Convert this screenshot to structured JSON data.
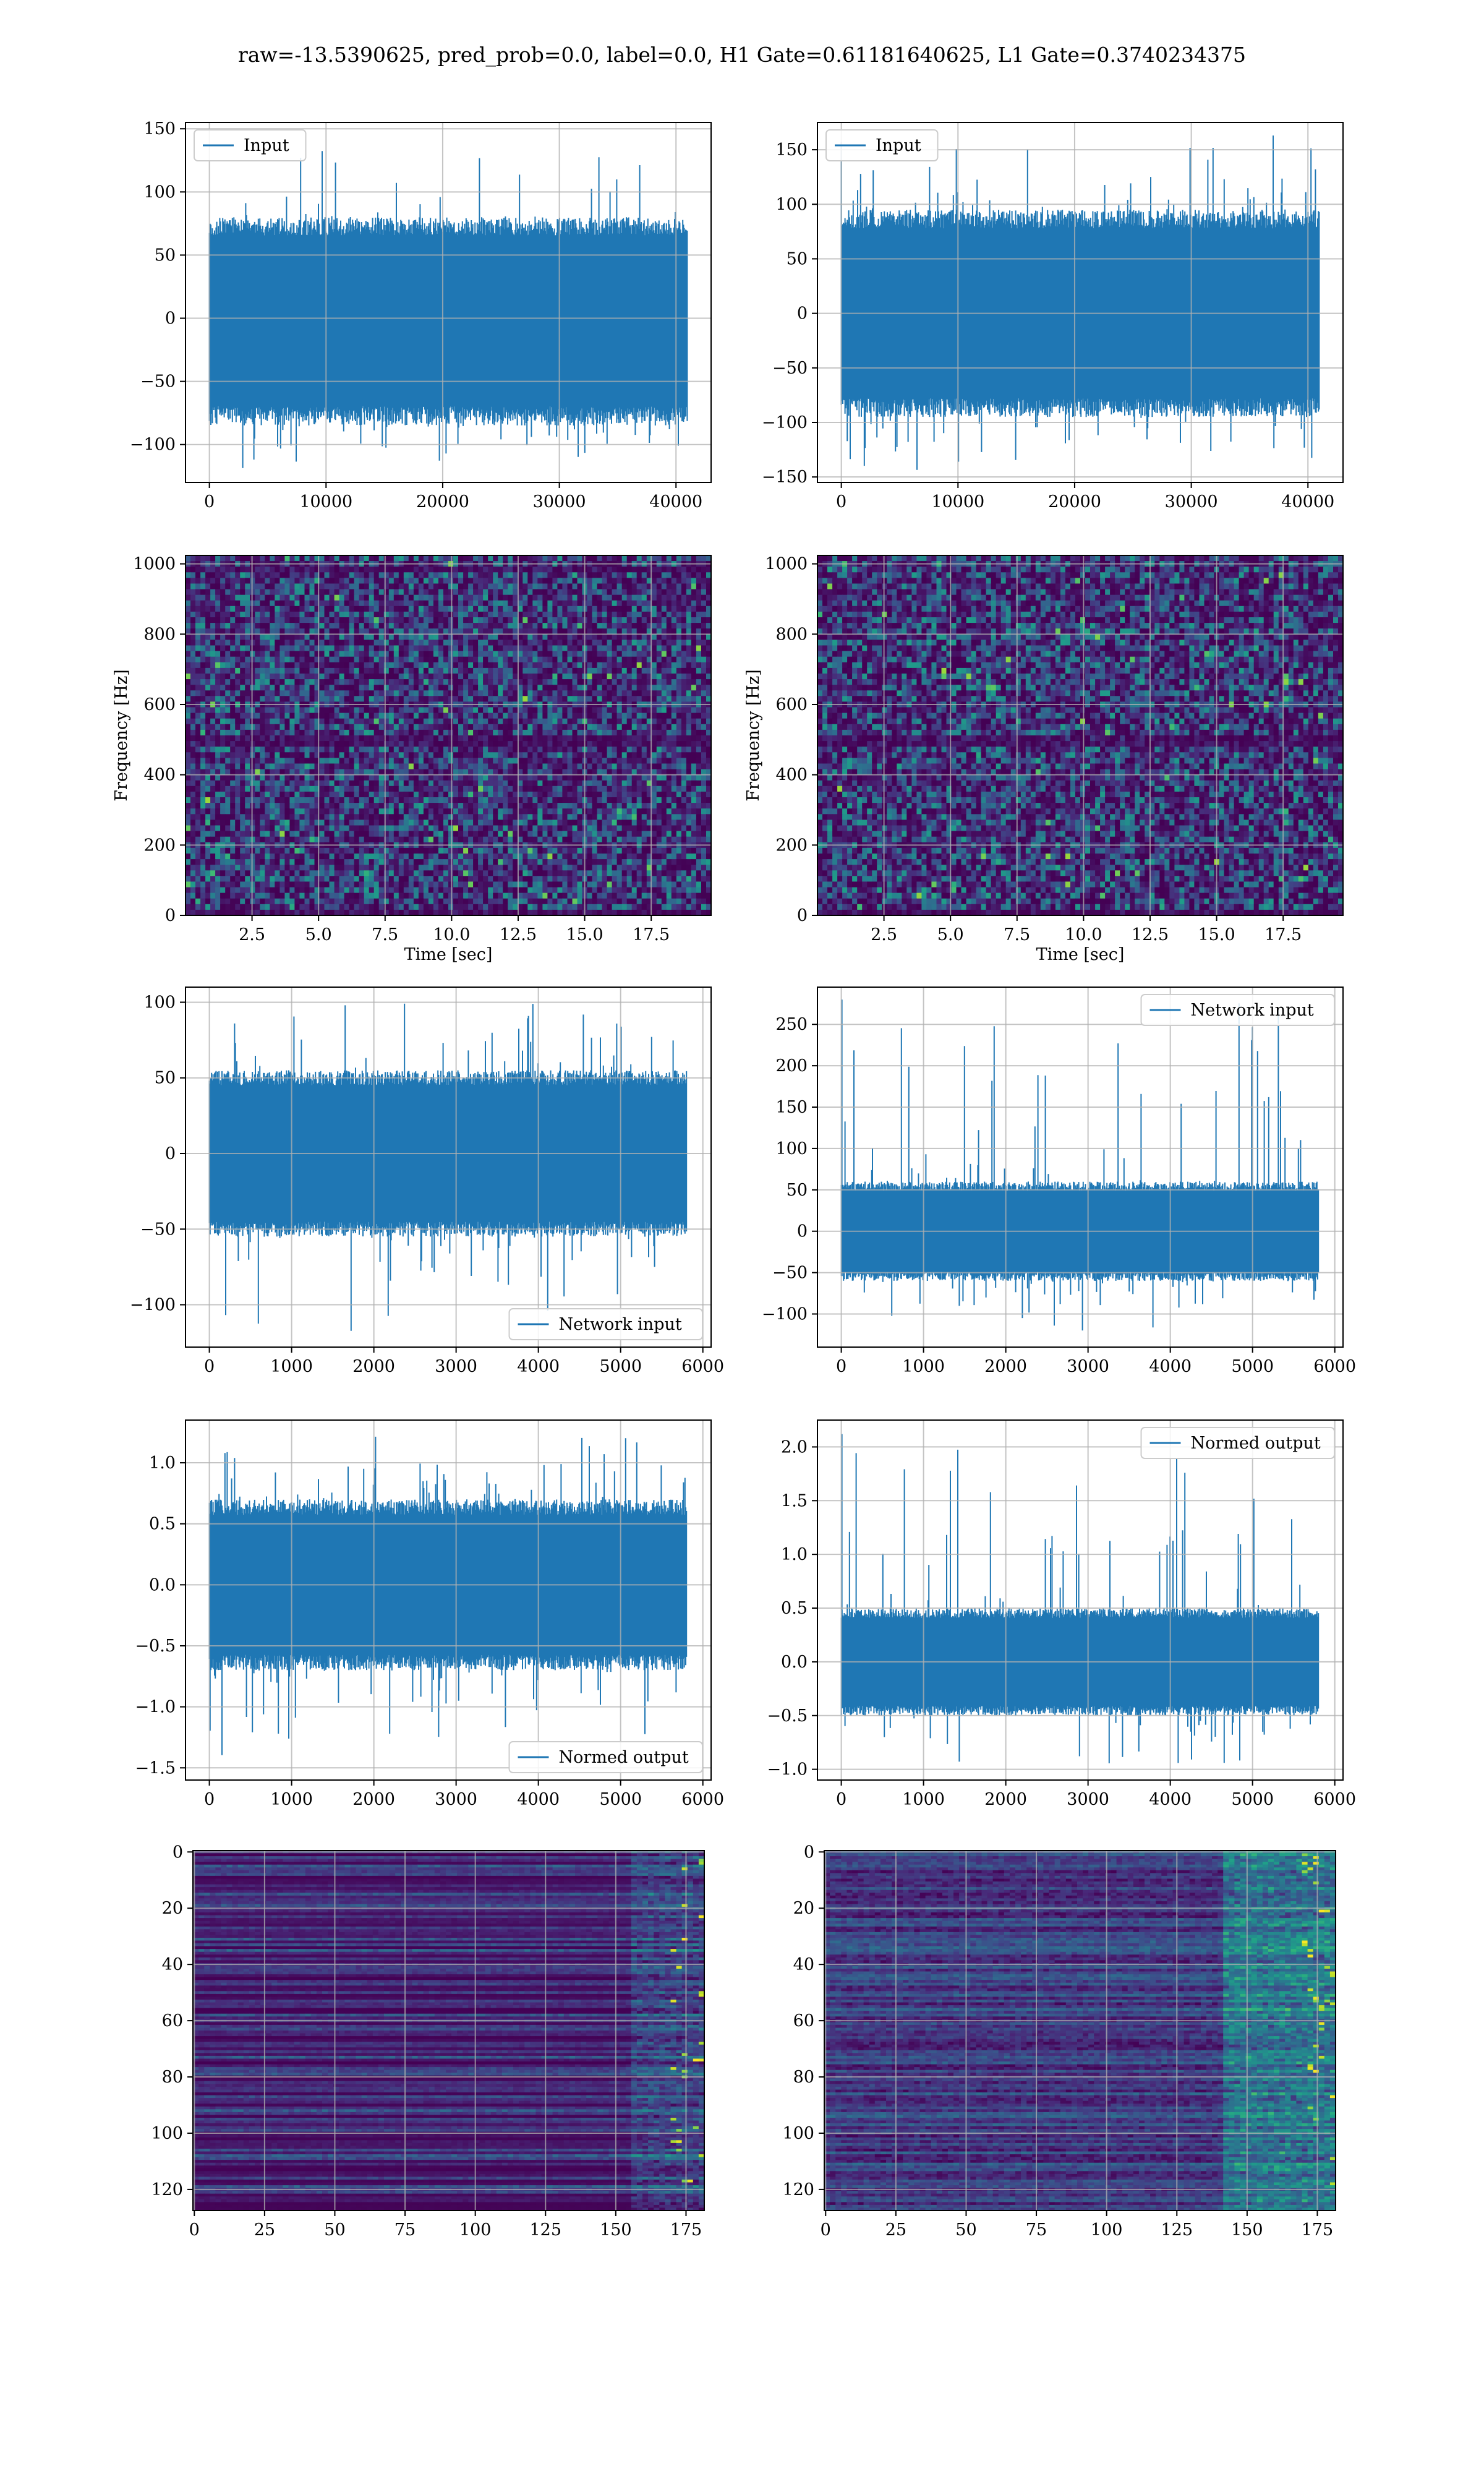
{
  "figure": {
    "suptitle": "raw=-13.5390625, pred_prob=0.0, label=0.0, H1 Gate=0.61181640625, L1 Gate=0.3740234375"
  },
  "colors": {
    "line": "#1f77b4",
    "grid": "#b0b0b0",
    "viridis_low": "#440154",
    "viridis_mid": "#21918c",
    "viridis_high": "#fde725"
  },
  "chart_data": [
    {
      "id": "h1-input",
      "type": "line",
      "xlim": [
        -2048,
        43008
      ],
      "ylim": [
        -130,
        155
      ],
      "xticks": [
        0,
        10000,
        20000,
        30000,
        40000
      ],
      "yticks": [
        -100,
        -50,
        0,
        50,
        100,
        150
      ],
      "xlabel": "",
      "ylabel": "",
      "legend": {
        "label": "Input",
        "position": "upper-left"
      },
      "series": [
        {
          "name": "Input",
          "n_samples": 40960,
          "x_range": [
            0,
            40960
          ],
          "typical_range": [
            -85,
            80
          ],
          "min": -120,
          "max": 140,
          "spike_start": false
        }
      ],
      "grid": true
    },
    {
      "id": "l1-input",
      "type": "line",
      "xlim": [
        -2048,
        43008
      ],
      "ylim": [
        -155,
        175
      ],
      "xticks": [
        0,
        10000,
        20000,
        30000,
        40000
      ],
      "yticks": [
        -150,
        -100,
        -50,
        0,
        50,
        100,
        150
      ],
      "xlabel": "",
      "ylabel": "",
      "legend": {
        "label": "Input",
        "position": "upper-left"
      },
      "series": [
        {
          "name": "Input",
          "n_samples": 40960,
          "x_range": [
            0,
            40960
          ],
          "typical_range": [
            -95,
            95
          ],
          "min": -145,
          "max": 170,
          "spike_start": false
        }
      ],
      "grid": true
    },
    {
      "id": "h1-spectrogram",
      "type": "heatmap",
      "xlim": [
        0,
        19.75
      ],
      "ylim": [
        0,
        1024
      ],
      "xticks": [
        2.5,
        5.0,
        7.5,
        10.0,
        12.5,
        15.0,
        17.5
      ],
      "yticks": [
        0,
        200,
        400,
        600,
        800,
        1000
      ],
      "xlabel": "Time [sec]",
      "ylabel": "Frequency [Hz]",
      "colormap": "viridis",
      "grid": true,
      "dark_bands_hz": [
        490,
        505,
        985
      ]
    },
    {
      "id": "l1-spectrogram",
      "type": "heatmap",
      "xlim": [
        0,
        19.75
      ],
      "ylim": [
        0,
        1024
      ],
      "xticks": [
        2.5,
        5.0,
        7.5,
        10.0,
        12.5,
        15.0,
        17.5
      ],
      "yticks": [
        0,
        200,
        400,
        600,
        800,
        1000
      ],
      "xlabel": "Time [sec]",
      "ylabel": "Frequency [Hz]",
      "colormap": "viridis",
      "grid": true,
      "dark_bands_hz": [
        490,
        505
      ]
    },
    {
      "id": "h1-network-input",
      "type": "line",
      "xlim": [
        -290,
        6100
      ],
      "ylim": [
        -128,
        110
      ],
      "xticks": [
        0,
        1000,
        2000,
        3000,
        4000,
        5000,
        6000
      ],
      "yticks": [
        -100,
        -50,
        0,
        50,
        100
      ],
      "xlabel": "",
      "ylabel": "",
      "legend": {
        "label": "Network input",
        "position": "lower-right"
      },
      "series": [
        {
          "name": "Network input",
          "n_samples": 5800,
          "x_range": [
            0,
            5800
          ],
          "typical_range": [
            -55,
            55
          ],
          "min": -118,
          "max": 100,
          "spike_start": false
        }
      ],
      "grid": true
    },
    {
      "id": "l1-network-input",
      "type": "line",
      "xlim": [
        -290,
        6100
      ],
      "ylim": [
        -140,
        295
      ],
      "xticks": [
        0,
        1000,
        2000,
        3000,
        4000,
        5000,
        6000
      ],
      "yticks": [
        -100,
        -50,
        0,
        50,
        100,
        150,
        200,
        250
      ],
      "xlabel": "",
      "ylabel": "",
      "legend": {
        "label": "Network input",
        "position": "upper-right"
      },
      "series": [
        {
          "name": "Network input",
          "n_samples": 5800,
          "x_range": [
            0,
            5800
          ],
          "typical_range": [
            -60,
            60
          ],
          "min": -120,
          "max": 280,
          "spike_start": true
        }
      ],
      "grid": true
    },
    {
      "id": "h1-normed-output",
      "type": "line",
      "xlim": [
        -290,
        6100
      ],
      "ylim": [
        -1.6,
        1.35
      ],
      "xticks": [
        0,
        1000,
        2000,
        3000,
        4000,
        5000,
        6000
      ],
      "yticks": [
        -1.5,
        -1.0,
        -0.5,
        0.0,
        0.5,
        1.0
      ],
      "xlabel": "",
      "ylabel": "",
      "legend": {
        "label": "Normed output",
        "position": "lower-right"
      },
      "series": [
        {
          "name": "Normed output",
          "n_samples": 5800,
          "x_range": [
            0,
            5800
          ],
          "typical_range": [
            -0.7,
            0.7
          ],
          "min": -1.45,
          "max": 1.22,
          "spike_start": false
        }
      ],
      "grid": true
    },
    {
      "id": "l1-normed-output",
      "type": "line",
      "xlim": [
        -290,
        6100
      ],
      "ylim": [
        -1.1,
        2.25
      ],
      "xticks": [
        0,
        1000,
        2000,
        3000,
        4000,
        5000,
        6000
      ],
      "yticks": [
        -1.0,
        -0.5,
        0.0,
        0.5,
        1.0,
        1.5,
        2.0
      ],
      "xlabel": "",
      "ylabel": "",
      "legend": {
        "label": "Normed output",
        "position": "upper-right"
      },
      "series": [
        {
          "name": "Normed output",
          "n_samples": 5800,
          "x_range": [
            0,
            5800
          ],
          "typical_range": [
            -0.5,
            0.5
          ],
          "min": -0.95,
          "max": 2.12,
          "spike_start": true
        }
      ],
      "grid": true
    },
    {
      "id": "h1-feature-map",
      "type": "heatmap",
      "xlim": [
        -0.5,
        181.5
      ],
      "ylim": [
        127.5,
        -0.5
      ],
      "xticks": [
        0,
        25,
        50,
        75,
        100,
        125,
        150,
        175
      ],
      "yticks": [
        0,
        20,
        40,
        60,
        80,
        100,
        120
      ],
      "xlabel": "",
      "ylabel": "",
      "colormap": "viridis",
      "grid": true,
      "shape": [
        128,
        182
      ]
    },
    {
      "id": "l1-feature-map",
      "type": "heatmap",
      "xlim": [
        -0.5,
        181.5
      ],
      "ylim": [
        127.5,
        -0.5
      ],
      "xticks": [
        0,
        25,
        50,
        75,
        100,
        125,
        150,
        175
      ],
      "yticks": [
        0,
        20,
        40,
        60,
        80,
        100,
        120
      ],
      "xlabel": "",
      "ylabel": "",
      "colormap": "viridis",
      "grid": true,
      "shape": [
        128,
        182
      ]
    }
  ]
}
